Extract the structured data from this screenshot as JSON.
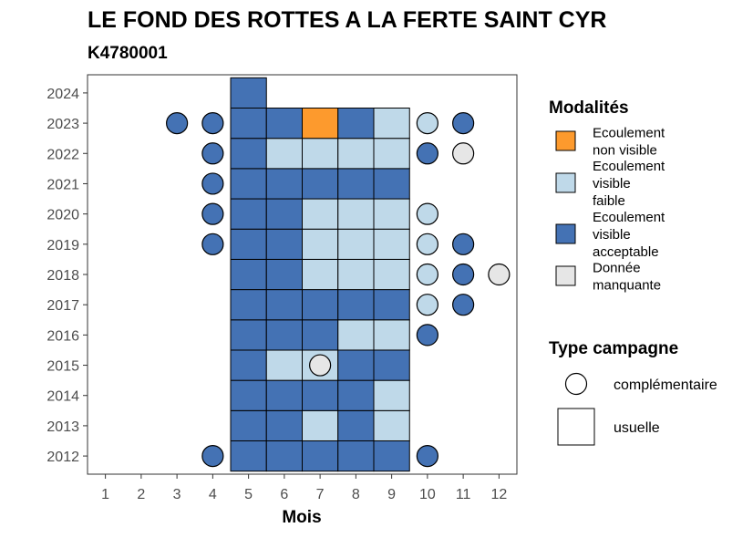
{
  "chart_data": {
    "type": "heatmap",
    "title": "LE FOND DES ROTTES A LA FERTE SAINT CYR",
    "subtitle": "K4780001",
    "xlabel": "Mois",
    "ylabel": "",
    "x_ticks": [
      "1",
      "2",
      "3",
      "4",
      "5",
      "6",
      "7",
      "8",
      "9",
      "10",
      "11",
      "12"
    ],
    "y_ticks": [
      "2012",
      "2013",
      "2014",
      "2015",
      "2016",
      "2017",
      "2018",
      "2019",
      "2020",
      "2021",
      "2022",
      "2023",
      "2024"
    ],
    "xlim": [
      0.5,
      12.5
    ],
    "ylim": [
      2011.4,
      2024.6
    ],
    "legend_modalites": {
      "title": "Modalités",
      "items": [
        {
          "key": "nv",
          "label_lines": [
            "Ecoulement",
            "non visible"
          ],
          "color": "#fd9a2d"
        },
        {
          "key": "vf",
          "label_lines": [
            "Ecoulement",
            "visible",
            "faible"
          ],
          "color": "#bfd9e9"
        },
        {
          "key": "va",
          "label_lines": [
            "Ecoulement",
            "visible",
            "acceptable"
          ],
          "color": "#4472b4"
        },
        {
          "key": "dm",
          "label_lines": [
            "Donnée",
            "manquante"
          ],
          "color": "#e6e6e6"
        }
      ]
    },
    "legend_campagne": {
      "title": "Type campagne",
      "items": [
        {
          "key": "complementaire",
          "label": "complémentaire",
          "shape": "circle"
        },
        {
          "key": "usuelle",
          "label": "usuelle",
          "shape": "square"
        }
      ]
    },
    "usuelle": [
      {
        "year": 2012,
        "cells": [
          "va",
          "va",
          "va",
          "va",
          "va"
        ]
      },
      {
        "year": 2013,
        "cells": [
          "va",
          "va",
          "vf",
          "va",
          "vf"
        ]
      },
      {
        "year": 2014,
        "cells": [
          "va",
          "va",
          "va",
          "va",
          "vf"
        ]
      },
      {
        "year": 2015,
        "cells": [
          "va",
          "vf",
          "vf",
          "va",
          "va"
        ]
      },
      {
        "year": 2016,
        "cells": [
          "va",
          "va",
          "va",
          "vf",
          "vf"
        ]
      },
      {
        "year": 2017,
        "cells": [
          "va",
          "va",
          "va",
          "va",
          "va"
        ]
      },
      {
        "year": 2018,
        "cells": [
          "va",
          "va",
          "vf",
          "vf",
          "vf"
        ]
      },
      {
        "year": 2019,
        "cells": [
          "va",
          "va",
          "vf",
          "vf",
          "vf"
        ]
      },
      {
        "year": 2020,
        "cells": [
          "va",
          "va",
          "vf",
          "vf",
          "vf"
        ]
      },
      {
        "year": 2021,
        "cells": [
          "va",
          "va",
          "va",
          "va",
          "va"
        ]
      },
      {
        "year": 2022,
        "cells": [
          "va",
          "vf",
          "vf",
          "vf",
          "vf"
        ]
      },
      {
        "year": 2023,
        "cells": [
          "va",
          "va",
          "nv",
          "va",
          "vf"
        ]
      },
      {
        "year": 2024,
        "cells": [
          "va"
        ]
      }
    ],
    "usuelle_first_month": 5,
    "complementaire": [
      {
        "year": 2012,
        "month": 4,
        "m": "va"
      },
      {
        "year": 2012,
        "month": 10,
        "m": "va"
      },
      {
        "year": 2015,
        "month": 7,
        "m": "dm"
      },
      {
        "year": 2016,
        "month": 10,
        "m": "va"
      },
      {
        "year": 2017,
        "month": 10,
        "m": "vf"
      },
      {
        "year": 2017,
        "month": 11,
        "m": "va"
      },
      {
        "year": 2018,
        "month": 10,
        "m": "vf"
      },
      {
        "year": 2018,
        "month": 11,
        "m": "va"
      },
      {
        "year": 2018,
        "month": 12,
        "m": "dm"
      },
      {
        "year": 2019,
        "month": 4,
        "m": "va"
      },
      {
        "year": 2019,
        "month": 10,
        "m": "vf"
      },
      {
        "year": 2019,
        "month": 11,
        "m": "va"
      },
      {
        "year": 2020,
        "month": 4,
        "m": "va"
      },
      {
        "year": 2020,
        "month": 10,
        "m": "vf"
      },
      {
        "year": 2021,
        "month": 4,
        "m": "va"
      },
      {
        "year": 2022,
        "month": 4,
        "m": "va"
      },
      {
        "year": 2022,
        "month": 10,
        "m": "va"
      },
      {
        "year": 2022,
        "month": 11,
        "m": "dm"
      },
      {
        "year": 2023,
        "month": 3,
        "m": "va"
      },
      {
        "year": 2023,
        "month": 4,
        "m": "va"
      },
      {
        "year": 2023,
        "month": 10,
        "m": "vf"
      },
      {
        "year": 2023,
        "month": 11,
        "m": "va"
      }
    ]
  }
}
